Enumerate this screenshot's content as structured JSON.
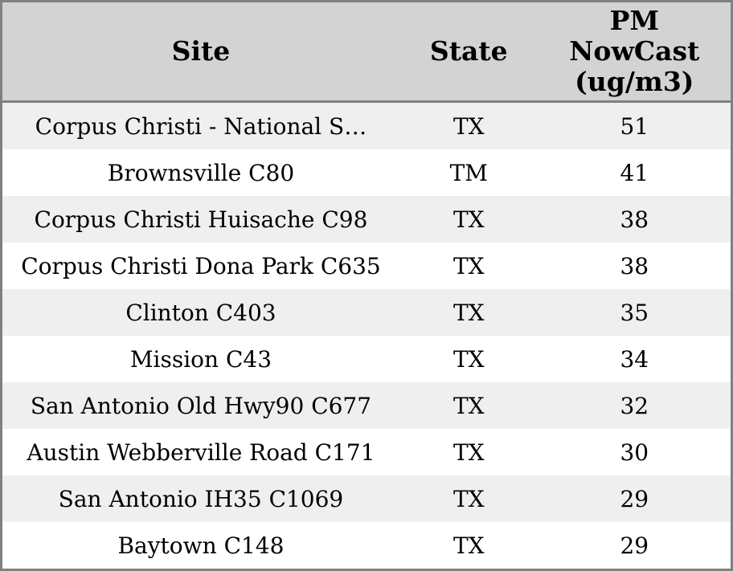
{
  "colors": {
    "header_bg": "#d3d3d3",
    "border": "#808080",
    "row_alt_bg": "#efefef",
    "row_bg": "#ffffff",
    "text": "#000000"
  },
  "table": {
    "columns": [
      {
        "label": "Site"
      },
      {
        "label": "State"
      },
      {
        "label": "PM NowCast (ug/m3)"
      }
    ],
    "rows": [
      {
        "site": "Corpus Christi - National S…",
        "state": "TX",
        "pm_nowcast": "51"
      },
      {
        "site": "Brownsville C80",
        "state": "TM",
        "pm_nowcast": "41"
      },
      {
        "site": "Corpus Christi Huisache C98",
        "state": "TX",
        "pm_nowcast": "38"
      },
      {
        "site": "Corpus Christi Dona Park C635",
        "state": "TX",
        "pm_nowcast": "38"
      },
      {
        "site": "Clinton C403",
        "state": "TX",
        "pm_nowcast": "35"
      },
      {
        "site": "Mission C43",
        "state": "TX",
        "pm_nowcast": "34"
      },
      {
        "site": "San Antonio Old Hwy90 C677",
        "state": "TX",
        "pm_nowcast": "32"
      },
      {
        "site": "Austin Webberville Road C171",
        "state": "TX",
        "pm_nowcast": "30"
      },
      {
        "site": "San Antonio IH35 C1069",
        "state": "TX",
        "pm_nowcast": "29"
      },
      {
        "site": "Baytown C148",
        "state": "TX",
        "pm_nowcast": "29"
      }
    ]
  },
  "chart_data": {
    "type": "table",
    "title": "",
    "columns": [
      "Site",
      "State",
      "PM NowCast (ug/m3)"
    ],
    "rows": [
      [
        "Corpus Christi - National S…",
        "TX",
        51
      ],
      [
        "Brownsville C80",
        "TM",
        41
      ],
      [
        "Corpus Christi Huisache C98",
        "TX",
        38
      ],
      [
        "Corpus Christi Dona Park C635",
        "TX",
        38
      ],
      [
        "Clinton C403",
        "TX",
        35
      ],
      [
        "Mission C43",
        "TX",
        34
      ],
      [
        "San Antonio Old Hwy90 C677",
        "TX",
        32
      ],
      [
        "Austin Webberville Road C171",
        "TX",
        30
      ],
      [
        "San Antonio IH35 C1069",
        "TX",
        29
      ],
      [
        "Baytown C148",
        "TX",
        29
      ]
    ]
  }
}
